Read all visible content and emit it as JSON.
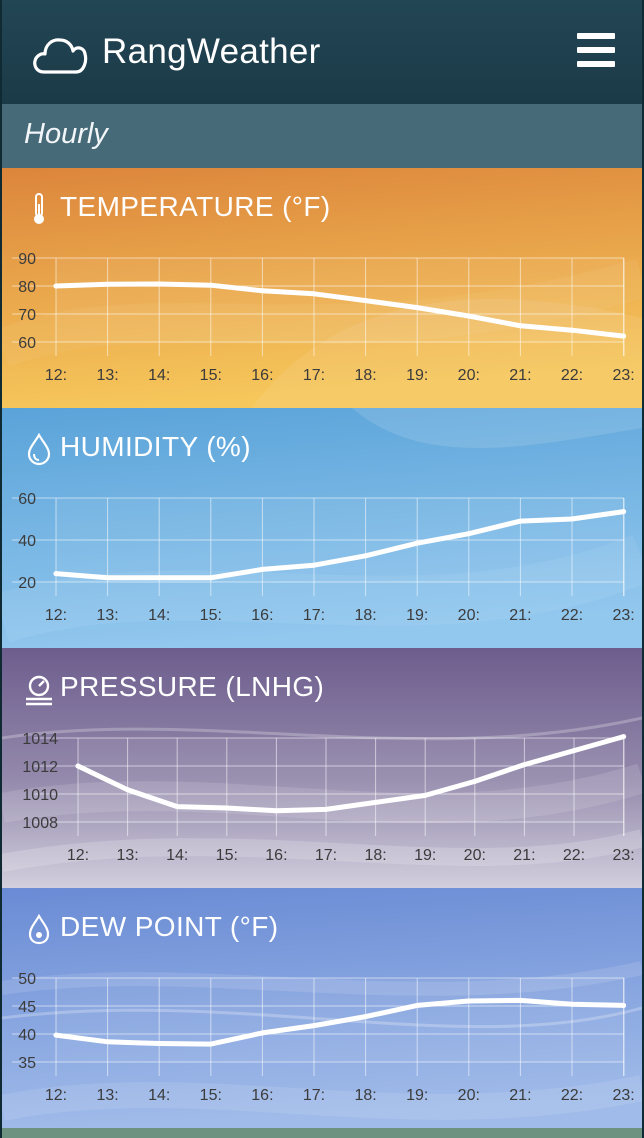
{
  "app": {
    "title": "RangWeather",
    "logo_icon": "cloud-icon",
    "menu_icon": "hamburger-menu-icon"
  },
  "section": {
    "title": "Hourly"
  },
  "panels": [
    {
      "id": "temperature",
      "title": "TEMPERATURE (°F)",
      "icon": "thermometer-icon",
      "colors": {
        "top": "#dd8a3e",
        "bottom": "#f4c35a",
        "accent": "#e9a64a"
      },
      "chart_data": {
        "type": "line",
        "x": [
          "12:",
          "13:",
          "14:",
          "15:",
          "16:",
          "17:",
          "18:",
          "19:",
          "20:",
          "21:",
          "22:",
          "23:"
        ],
        "y_ticks": [
          "90",
          "80",
          "70",
          "60"
        ],
        "ylim": [
          60,
          90
        ],
        "values": [
          80,
          80.6,
          80.7,
          80.3,
          78.3,
          77.2,
          74.8,
          72.3,
          69.3,
          65.8,
          64.2,
          62.1
        ]
      }
    },
    {
      "id": "humidity",
      "title": "HUMIDITY (%)",
      "icon": "water-drop-icon",
      "colors": {
        "top": "#5ba4da",
        "bottom": "#8ec5ee",
        "accent": "#70b2e4"
      },
      "chart_data": {
        "type": "line",
        "x": [
          "12:",
          "13:",
          "14:",
          "15:",
          "16:",
          "17:",
          "18:",
          "19:",
          "20:",
          "21:",
          "22:",
          "23:"
        ],
        "y_ticks": [
          "60",
          "40",
          "20"
        ],
        "ylim": [
          20,
          60
        ],
        "values": [
          24,
          22,
          22,
          22,
          26,
          28,
          32.5,
          38.5,
          43,
          49,
          50,
          53.5
        ]
      }
    },
    {
      "id": "pressure",
      "title": "PRESSURE (LNHG)",
      "icon": "pressure-gauge-icon",
      "colors": {
        "top": "#6f5f8e",
        "bottom": "#c3bfd2",
        "accent": "#9a8fb3"
      },
      "chart_data": {
        "type": "line",
        "x": [
          "12:",
          "13:",
          "14:",
          "15:",
          "16:",
          "17:",
          "18:",
          "19:",
          "20:",
          "21:",
          "22:",
          "23:"
        ],
        "y_ticks": [
          "1014",
          "1012",
          "1010",
          "1008"
        ],
        "ylim": [
          1008,
          1014
        ],
        "values": [
          1012,
          1010.3,
          1009.1,
          1009,
          1008.8,
          1008.9,
          1009.4,
          1009.9,
          1010.9,
          1012.1,
          1013.1,
          1014.1
        ]
      }
    },
    {
      "id": "dew_point",
      "title": "DEW POINT (°F)",
      "icon": "dew-drop-icon",
      "colors": {
        "top": "#6e8fd6",
        "bottom": "#9bb6e8",
        "accent": "#8aa4e0"
      },
      "chart_data": {
        "type": "line",
        "x": [
          "12:",
          "13:",
          "14:",
          "15:",
          "16:",
          "17:",
          "18:",
          "19:",
          "20:",
          "21:",
          "22:",
          "23:"
        ],
        "y_ticks": [
          "50",
          "45",
          "40",
          "35"
        ],
        "ylim": [
          35,
          50
        ],
        "values": [
          39.8,
          38.6,
          38.3,
          38.2,
          40.2,
          41.5,
          43.1,
          45.1,
          45.9,
          46,
          45.3,
          45.1
        ]
      }
    }
  ]
}
